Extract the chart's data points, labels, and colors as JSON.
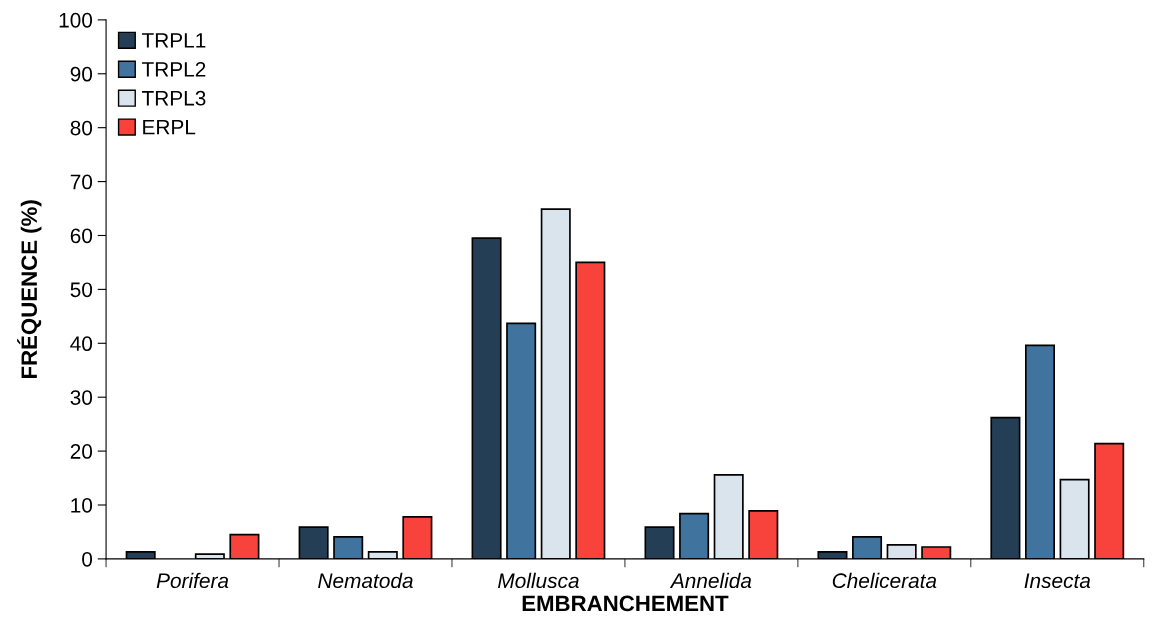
{
  "chart_data": {
    "type": "bar",
    "xlabel": "EMBRANCHEMENT",
    "ylabel": "FRÉQUENCE (%)",
    "categories": [
      "Porifera",
      "Nematoda",
      "Mollusca",
      "Annelida",
      "Chelicerata",
      "Insecta"
    ],
    "series": [
      {
        "name": "TRPL1",
        "color": "#243f55",
        "values": [
          1.3,
          5.9,
          59.5,
          5.9,
          1.3,
          26.2
        ]
      },
      {
        "name": "TRPL2",
        "color": "#41739f",
        "values": [
          0,
          4.1,
          43.7,
          8.4,
          4.1,
          39.6
        ]
      },
      {
        "name": "TRPL3",
        "color": "#d9e4ed",
        "values": [
          0.9,
          1.3,
          64.9,
          15.6,
          2.6,
          14.7
        ]
      },
      {
        "name": "ERPL",
        "color": "#f8423c",
        "values": [
          4.5,
          7.8,
          55.0,
          8.9,
          2.2,
          21.4
        ]
      }
    ],
    "ylim": [
      0,
      100
    ],
    "yticks": [
      0,
      10,
      20,
      30,
      40,
      50,
      60,
      70,
      80,
      90,
      100
    ],
    "grid": false,
    "legend": "top left"
  }
}
